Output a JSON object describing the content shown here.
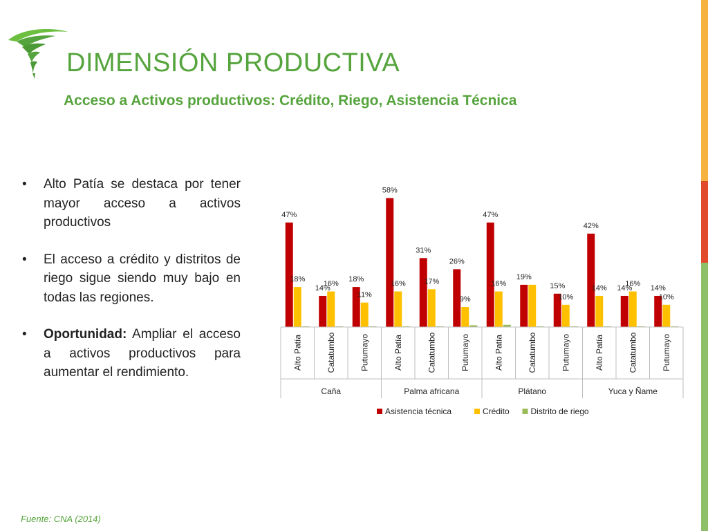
{
  "header": {
    "title": "DIMENSIÓN PRODUCTIVA",
    "subtitle": "Acceso a Activos productivos: Crédito, Riego, Asistencia Técnica"
  },
  "bullets": [
    {
      "bold": "",
      "text": "Alto Patía se destaca por tener mayor acceso a activos productivos"
    },
    {
      "bold": "",
      "text": "El acceso a crédito y distritos de riego sigue siendo muy bajo en todas las regiones."
    },
    {
      "bold": "Oportunidad:",
      "text": " Ampliar el acceso a activos productivos para aumentar el rendimiento."
    }
  ],
  "bullet_marker": "•",
  "footer": {
    "source": "Fuente: CNA (2014)"
  },
  "colors": {
    "accent": "#56a43d",
    "stripe": [
      "#f6b33f",
      "#e14b2c",
      "#8ec06a"
    ]
  },
  "chart_data": {
    "type": "bar",
    "groups": [
      "Caña",
      "Palma africana",
      "Plátano",
      "Yuca y Ñame"
    ],
    "categories": [
      "Alto Patía",
      "Catatumbo",
      "Putumayo",
      "Alto Patía",
      "Catatumbo",
      "Putumayo",
      "Alto Patía",
      "Catatumbo",
      "Putumayo",
      "Alto Patía",
      "Catatumbo",
      "Putumayo"
    ],
    "series": [
      {
        "name": "Asistencia técnica",
        "color": "#c00000",
        "values": [
          47,
          14,
          18,
          58,
          31,
          26,
          47,
          19,
          15,
          42,
          14,
          14
        ],
        "labels": [
          "47%",
          "14%",
          "18%",
          "58%",
          "31%",
          "26%",
          "47%",
          "19%",
          "15%",
          "42%",
          "14%",
          "14%"
        ]
      },
      {
        "name": "Crédito",
        "color": "#ffc000",
        "values": [
          18,
          16,
          11,
          16,
          17,
          9,
          16,
          19,
          10,
          14,
          16,
          10
        ],
        "labels": [
          "18%",
          "16%",
          "11%",
          "16%",
          "17%",
          "9%",
          "16%",
          "",
          "10%",
          "14%",
          "16%",
          "10%"
        ]
      },
      {
        "name": "Distrito de riego",
        "color": "#9bbb59",
        "values": [
          0.3,
          0.3,
          0.3,
          0.3,
          0.3,
          0.8,
          1,
          0.3,
          0.3,
          0.3,
          0.3,
          0.3
        ],
        "labels": []
      }
    ],
    "ylim": [
      0,
      60
    ],
    "legend": "bottom",
    "grid": false
  }
}
